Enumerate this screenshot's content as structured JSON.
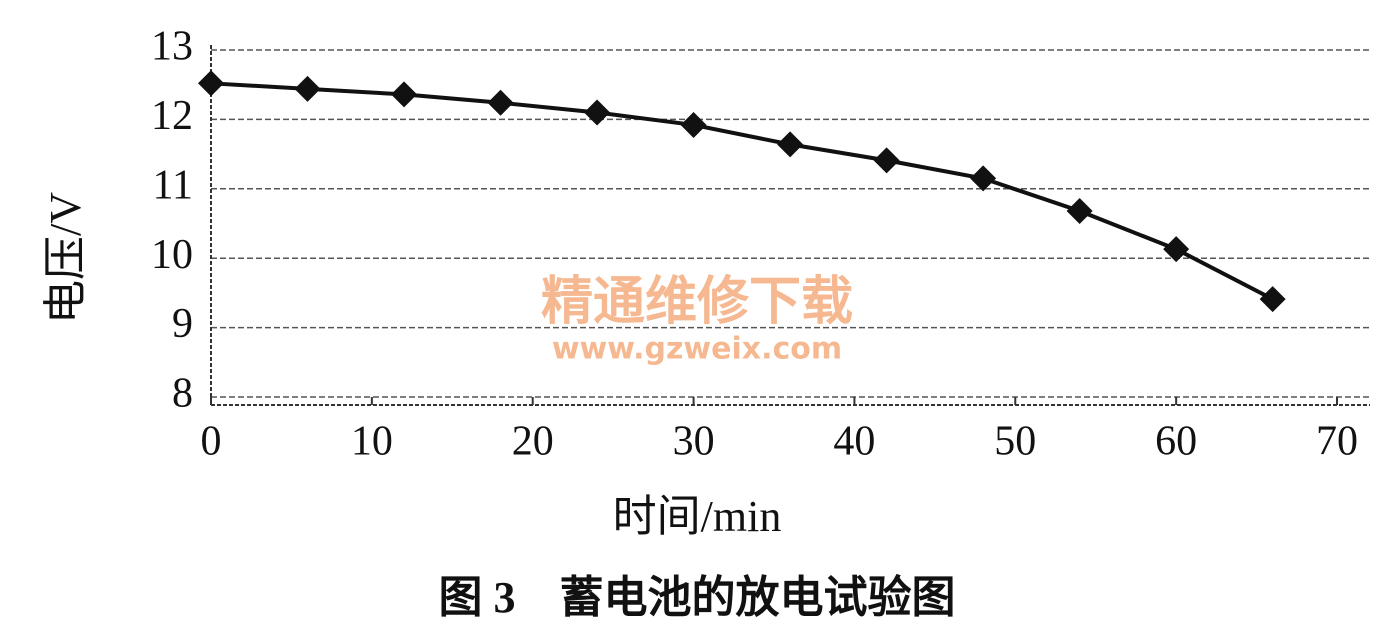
{
  "chart_data": {
    "type": "line",
    "title": "图 3　蓄电池的放电试验图",
    "xlabel": "时间/min",
    "ylabel": "电压/V",
    "watermark": [
      "精通维修下载",
      "www.gzweix.com"
    ],
    "x": [
      0,
      6,
      12,
      18,
      24,
      30,
      36,
      42,
      48,
      54,
      60,
      66
    ],
    "series": [
      {
        "color": "#111111",
        "values": [
          12.52,
          12.44,
          12.36,
          12.24,
          12.1,
          11.92,
          11.64,
          11.41,
          11.15,
          10.68,
          10.13,
          9.41
        ]
      }
    ],
    "xlim": [
      0,
      70
    ],
    "xticks": [
      0,
      10,
      20,
      30,
      40,
      50,
      60,
      70
    ],
    "ylim": [
      8,
      13
    ],
    "yticks": [
      8,
      9,
      10,
      11,
      12,
      13
    ],
    "grid": true
  }
}
